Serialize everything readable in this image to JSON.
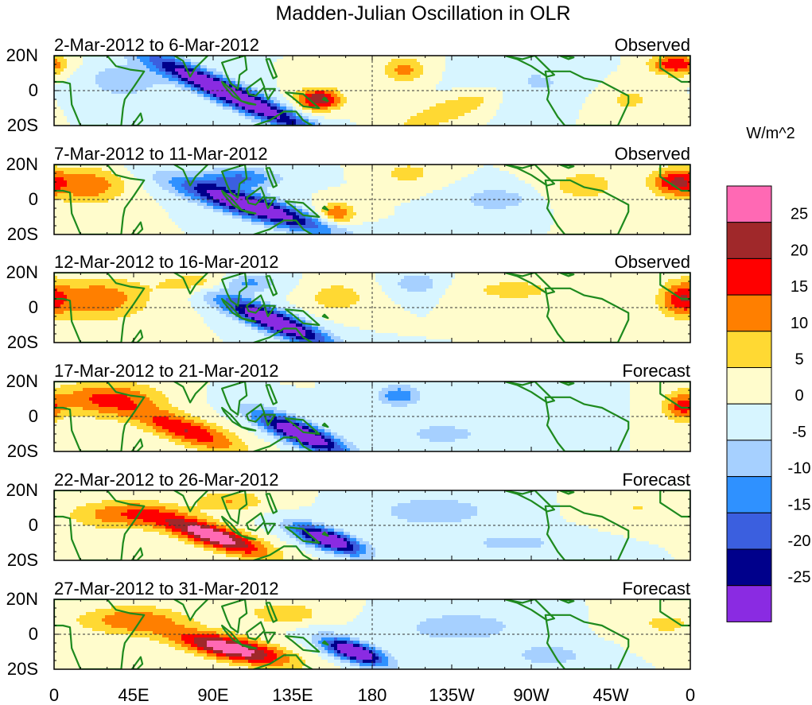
{
  "chart_data": {
    "type": "heatmap",
    "title": "Madden-Julian Oscillation in OLR",
    "xlabel": "",
    "ylabel": "",
    "units_label": "W/m^2",
    "x_ticks": [
      "0",
      "45E",
      "90E",
      "135E",
      "180",
      "135W",
      "90W",
      "45W",
      "0"
    ],
    "y_ticks": [
      "20N",
      "0",
      "20S"
    ],
    "lon_range": [
      0,
      360
    ],
    "lat_range": [
      -20,
      20
    ],
    "colorbar": {
      "tick_labels": [
        "25",
        "20",
        "15",
        "10",
        "5",
        "0",
        "-5",
        "-10",
        "-15",
        "-20",
        "-25"
      ],
      "colors": [
        "#ff69b4",
        "#a0282a",
        "#ff0000",
        "#ff7f00",
        "#ffd933",
        "#fffccc",
        "#d7f5ff",
        "#a6d0ff",
        "#2f91ff",
        "#3b5fdf",
        "#00008b",
        "#8a2be2"
      ]
    },
    "panels": [
      {
        "period": "2-Mar-2012 to 6-Mar-2012",
        "kind": "Observed",
        "features": [
          {
            "lon": 100,
            "lat": -2,
            "amp": -36,
            "wlon": 48,
            "wlat": 7,
            "tilt": -0.45
          },
          {
            "lon": 150,
            "lat": -5,
            "amp": 25,
            "wlon": 12,
            "wlat": 6,
            "tilt": 0
          },
          {
            "lon": 222,
            "lat": -12,
            "amp": 10,
            "wlon": 30,
            "wlat": 7,
            "tilt": 0.35
          },
          {
            "lon": 198,
            "lat": 12,
            "amp": 12,
            "wlon": 12,
            "wlat": 7,
            "tilt": 0
          },
          {
            "lon": 352,
            "lat": 15,
            "amp": 20,
            "wlon": 14,
            "wlat": 6,
            "tilt": 0
          },
          {
            "lon": 40,
            "lat": 6,
            "amp": -9,
            "wlon": 22,
            "wlat": 10,
            "tilt": 0
          },
          {
            "lon": 270,
            "lat": 5,
            "amp": -6,
            "wlon": 30,
            "wlat": 12,
            "tilt": 0
          },
          {
            "lon": 325,
            "lat": -5,
            "amp": 6,
            "wlon": 18,
            "wlat": 10,
            "tilt": 0
          }
        ]
      },
      {
        "period": "7-Mar-2012 to 11-Mar-2012",
        "kind": "Observed",
        "features": [
          {
            "lon": 112,
            "lat": -4,
            "amp": -34,
            "wlon": 42,
            "wlat": 7,
            "tilt": -0.3
          },
          {
            "lon": 105,
            "lat": 12,
            "amp": -16,
            "wlon": 22,
            "wlat": 6,
            "tilt": 0
          },
          {
            "lon": 160,
            "lat": -8,
            "amp": 15,
            "wlon": 10,
            "wlat": 6,
            "tilt": 0
          },
          {
            "lon": 20,
            "lat": 8,
            "amp": 14,
            "wlon": 20,
            "wlat": 10,
            "tilt": 0
          },
          {
            "lon": 352,
            "lat": 10,
            "amp": 20,
            "wlon": 14,
            "wlat": 8,
            "tilt": 0
          },
          {
            "lon": 250,
            "lat": 0,
            "amp": -10,
            "wlon": 18,
            "wlat": 6,
            "tilt": 0
          },
          {
            "lon": 200,
            "lat": 15,
            "amp": 8,
            "wlon": 14,
            "wlat": 6,
            "tilt": 0
          },
          {
            "lon": 300,
            "lat": 8,
            "amp": 9,
            "wlon": 18,
            "wlat": 8,
            "tilt": 0
          }
        ]
      },
      {
        "period": "12-Mar-2012 to 16-Mar-2012",
        "kind": "Observed",
        "features": [
          {
            "lon": 125,
            "lat": -8,
            "amp": -34,
            "wlon": 32,
            "wlat": 7,
            "tilt": -0.4
          },
          {
            "lon": 110,
            "lat": 14,
            "amp": -12,
            "wlon": 16,
            "wlat": 5,
            "tilt": 0
          },
          {
            "lon": 25,
            "lat": 5,
            "amp": 14,
            "wlon": 28,
            "wlat": 12,
            "tilt": 0
          },
          {
            "lon": 80,
            "lat": 14,
            "amp": 10,
            "wlon": 20,
            "wlat": 6,
            "tilt": 0
          },
          {
            "lon": 160,
            "lat": 6,
            "amp": 9,
            "wlon": 16,
            "wlat": 8,
            "tilt": 0
          },
          {
            "lon": 205,
            "lat": 14,
            "amp": -10,
            "wlon": 12,
            "wlat": 6,
            "tilt": 0
          },
          {
            "lon": 355,
            "lat": 5,
            "amp": 16,
            "wlon": 12,
            "wlat": 10,
            "tilt": 0
          },
          {
            "lon": 260,
            "lat": 10,
            "amp": 8,
            "wlon": 25,
            "wlat": 6,
            "tilt": 0
          }
        ]
      },
      {
        "period": "17-Mar-2012 to 21-Mar-2012",
        "kind": "Forecast",
        "features": [
          {
            "lon": 140,
            "lat": -10,
            "amp": -34,
            "wlon": 26,
            "wlat": 7,
            "tilt": -0.4
          },
          {
            "lon": 75,
            "lat": -8,
            "amp": 20,
            "wlon": 30,
            "wlat": 8,
            "tilt": -0.3
          },
          {
            "lon": 30,
            "lat": 10,
            "amp": 16,
            "wlon": 30,
            "wlat": 10,
            "tilt": 0
          },
          {
            "lon": 195,
            "lat": 12,
            "amp": -14,
            "wlon": 12,
            "wlat": 6,
            "tilt": 0
          },
          {
            "lon": 220,
            "lat": -10,
            "amp": -8,
            "wlon": 22,
            "wlat": 6,
            "tilt": 0
          },
          {
            "lon": 355,
            "lat": 5,
            "amp": 14,
            "wlon": 10,
            "wlat": 8,
            "tilt": 0
          },
          {
            "lon": 270,
            "lat": 10,
            "amp": -5,
            "wlon": 30,
            "wlat": 10,
            "tilt": 0
          }
        ]
      },
      {
        "period": "22-Mar-2012 to 26-Mar-2012",
        "kind": "Forecast",
        "features": [
          {
            "lon": 155,
            "lat": -8,
            "amp": -34,
            "wlon": 20,
            "wlat": 6,
            "tilt": -0.3
          },
          {
            "lon": 90,
            "lat": -6,
            "amp": 30,
            "wlon": 30,
            "wlat": 7,
            "tilt": -0.3
          },
          {
            "lon": 40,
            "lat": 6,
            "amp": 14,
            "wlon": 30,
            "wlat": 8,
            "tilt": 0
          },
          {
            "lon": 100,
            "lat": 14,
            "amp": 10,
            "wlon": 20,
            "wlat": 6,
            "tilt": 0
          },
          {
            "lon": 215,
            "lat": 8,
            "amp": -10,
            "wlon": 30,
            "wlat": 8,
            "tilt": 0
          },
          {
            "lon": 260,
            "lat": -10,
            "amp": -7,
            "wlon": 30,
            "wlat": 6,
            "tilt": 0
          },
          {
            "lon": 330,
            "lat": 10,
            "amp": 5,
            "wlon": 20,
            "wlat": 8,
            "tilt": 0
          }
        ]
      },
      {
        "period": "27-Mar-2012 to 31-Mar-2012",
        "kind": "Forecast",
        "features": [
          {
            "lon": 170,
            "lat": -10,
            "amp": -34,
            "wlon": 18,
            "wlat": 6,
            "tilt": -0.3
          },
          {
            "lon": 100,
            "lat": -8,
            "amp": 30,
            "wlon": 32,
            "wlat": 7,
            "tilt": -0.2
          },
          {
            "lon": 45,
            "lat": 8,
            "amp": 14,
            "wlon": 30,
            "wlat": 8,
            "tilt": 0
          },
          {
            "lon": 130,
            "lat": 12,
            "amp": 10,
            "wlon": 20,
            "wlat": 6,
            "tilt": 0
          },
          {
            "lon": 230,
            "lat": 4,
            "amp": -10,
            "wlon": 30,
            "wlat": 8,
            "tilt": 0
          },
          {
            "lon": 280,
            "lat": -12,
            "amp": -9,
            "wlon": 20,
            "wlat": 6,
            "tilt": 0
          },
          {
            "lon": 345,
            "lat": 6,
            "amp": 6,
            "wlon": 18,
            "wlat": 8,
            "tilt": 0
          }
        ]
      }
    ]
  }
}
